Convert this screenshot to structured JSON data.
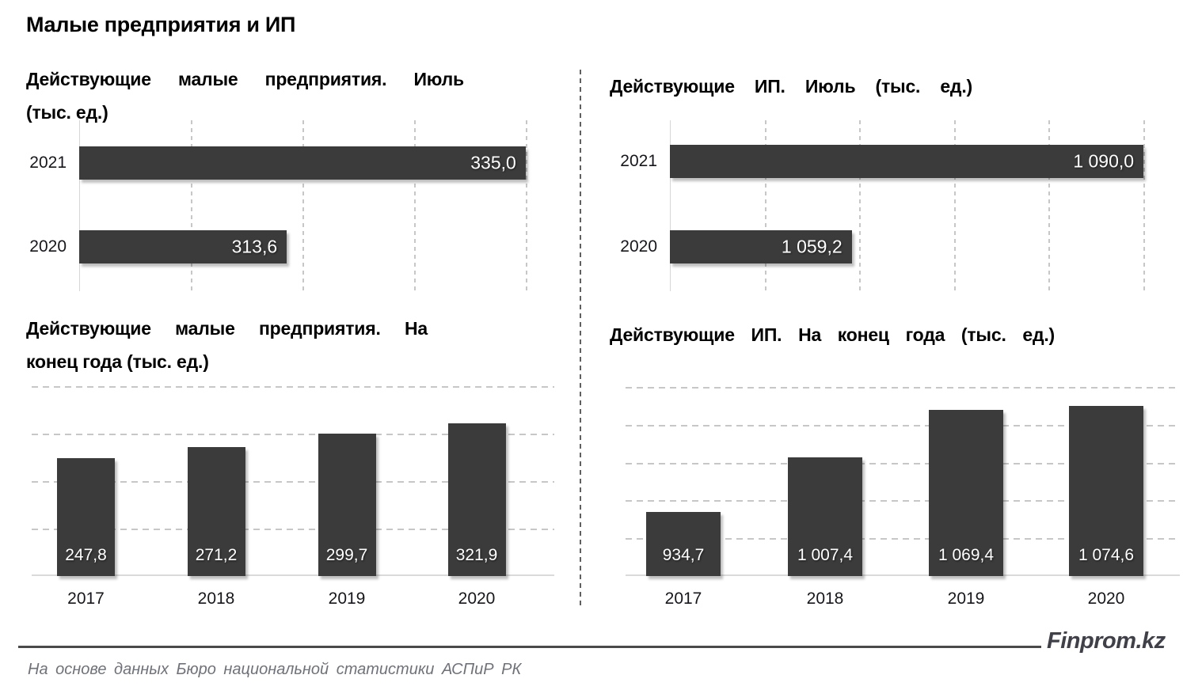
{
  "title": "Малые предприятия и ИП",
  "chart_data": [
    {
      "type": "bar",
      "orientation": "horizontal",
      "title": "Действующие малые предприятия. Июль (тыс. ед.)",
      "title_lines": [
        "Действующие малые предприятия. Июль",
        "(тыс. ед.)"
      ],
      "categories": [
        "2021",
        "2020"
      ],
      "values": [
        335.0,
        313.6
      ],
      "value_labels": [
        "335,0",
        "313,6"
      ],
      "xlim": [
        295,
        337
      ],
      "grid_step": 10,
      "grid": "vertical-dashed"
    },
    {
      "type": "bar",
      "orientation": "horizontal",
      "title": "Действующие ИП. Июль (тыс. ед.)",
      "title_lines": [
        "Действующие ИП. Июль (тыс. ед.)"
      ],
      "categories": [
        "2021",
        "2020"
      ],
      "values": [
        1090.0,
        1059.2
      ],
      "value_labels": [
        "1 090,0",
        "1 059,2"
      ],
      "xlim": [
        1040,
        1092
      ],
      "grid_step": 10,
      "grid": "vertical-dashed"
    },
    {
      "type": "bar",
      "orientation": "vertical",
      "title": "Действующие малые предприятия. На конец года (тыс. ед.)",
      "title_lines": [
        "Действующие малые предприятия. На",
        "конец года (тыс. ед.)"
      ],
      "categories": [
        "2017",
        "2018",
        "2019",
        "2020"
      ],
      "values": [
        247.8,
        271.2,
        299.7,
        321.9
      ],
      "value_labels": [
        "247,8",
        "271,2",
        "299,7",
        "321,9"
      ],
      "ylim": [
        0,
        430
      ],
      "grid_step": 100,
      "grid": "horizontal-dashed"
    },
    {
      "type": "bar",
      "orientation": "vertical",
      "title": "Действующие ИП. На конец года (тыс. ед.)",
      "title_lines": [
        "Действующие ИП. На конец года (тыс. ед.)"
      ],
      "categories": [
        "2017",
        "2018",
        "2019",
        "2020"
      ],
      "values": [
        934.7,
        1007.4,
        1069.4,
        1074.6
      ],
      "value_labels": [
        "934,7",
        "1 007,4",
        "1 069,4",
        "1 074,6"
      ],
      "ylim": [
        850,
        1120
      ],
      "grid_step": 50,
      "grid": "horizontal-dashed"
    }
  ],
  "footer": {
    "brand": "Finprom.kz",
    "source": "На основе данных Бюро национальной статистики АСПиР РК"
  },
  "colors": {
    "bar": "#3b3b3b",
    "gridline": "#c7c7c7",
    "axis_line": "#d6d6d6",
    "baseline": "#dadada",
    "divider": "#606060",
    "footer_rule": "#4a4a4a",
    "brand_text": "#404049",
    "source_text": "#70727a",
    "year_label": "#16161c",
    "value_label": "#ffffff",
    "title_text": "#000000"
  }
}
